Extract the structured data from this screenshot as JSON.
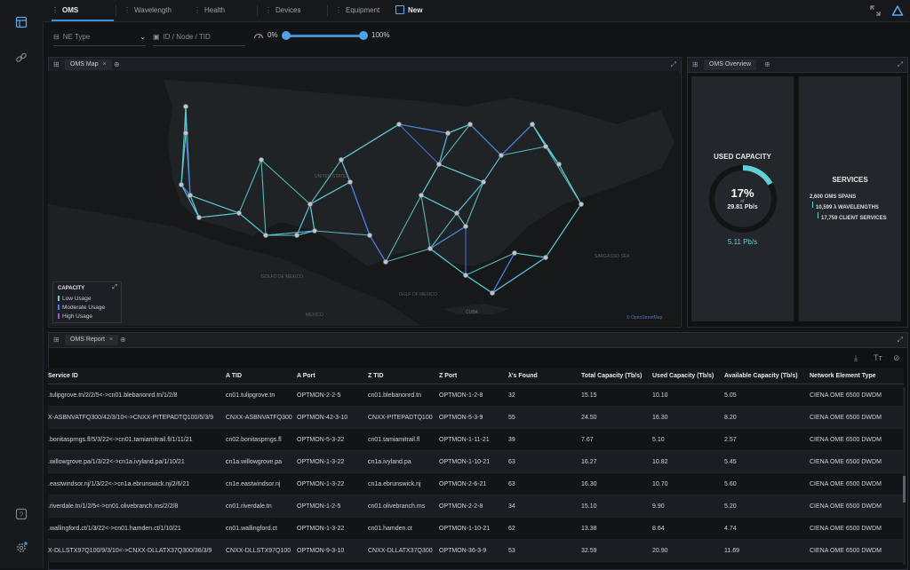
{
  "nav": {
    "tabs": [
      {
        "label": "OMS",
        "active": true
      },
      {
        "label": "Wavelength"
      },
      {
        "label": "Health"
      },
      {
        "label": "Devices"
      },
      {
        "label": "Equipment"
      },
      {
        "label": "New"
      }
    ]
  },
  "filters": {
    "ne_type_placeholder": "NE Type",
    "id_placeholder": "ID / Node / TID",
    "range_min": "0%",
    "range_max": "100%"
  },
  "map_panel": {
    "tab_label": "OMS Map",
    "legend": {
      "title": "CAPACITY",
      "items": [
        {
          "label": "Low Usage",
          "color": "#5fd0d6"
        },
        {
          "label": "Moderate Usage",
          "color": "#4a78ff"
        },
        {
          "label": "High Usage",
          "color": "#9b55e0"
        }
      ]
    },
    "place_labels": [
      "MEXICO",
      "GOLFO DE MEXICO",
      "GULF OF MEXICO",
      "CUBA",
      "SARGASSO SEA",
      "UNITED STATES"
    ],
    "attribution": "© OpenStreetMap"
  },
  "overview_panel": {
    "tab_label": "OMS Overview",
    "used_capacity": {
      "title": "USED CAPACITY",
      "percent": "17%",
      "of_label": "of",
      "total": "29.81 Pb/s",
      "used": "5.11 Pb/s",
      "fraction": 0.17
    },
    "services": {
      "title": "SERVICES",
      "lines": [
        "2,600 OMS SPANS",
        "10,599 λ WAVELENGTHS",
        "17,759 CLIENT SERVICES"
      ]
    }
  },
  "report_panel": {
    "tab_label": "OMS Report",
    "columns": [
      "Service ID",
      "A TID",
      "A Port",
      "Z TID",
      "Z Port",
      "λ's Found",
      "Total Capacity (Tb/s)",
      "Used Capacity (Tb/s)",
      "Available Capacity (Tb/s)",
      "Network Element Type"
    ],
    "rows": [
      [
        ".tulipgrove.tn/2/2/5<->cn01.blebanonrd.tn/1/2/8",
        "cn01.tulipgrove.tn",
        "OPTMON-2-2-5",
        "cn01.blebanonrd.tn",
        "OPTMON-1-2-8",
        "32",
        "15.15",
        "10.10",
        "5.05",
        "CIENA OME 6500 DWDM"
      ],
      [
        "X-ASBNVATFQ300/42/3/10<->CNXX-PITEPADTQ100/5/3/9",
        "CNXX-ASBNVATFQ300",
        "OPTMON-42-3-10",
        "CNXX-PITEPADTQ100",
        "OPTMON-5-3-9",
        "55",
        "24.50",
        "16.30",
        "8.20",
        "CIENA OME 6500 DWDM"
      ],
      [
        ".bonitasprngs.fl/5/3/22<->cn01.tamiamitrail.fl/1/11/21",
        "cn02.bonitasprngs.fl",
        "OPTMON-5-3-22",
        "cn01.tamiamitrail.fl",
        "OPTMON-1-11-21",
        "39",
        "7.67",
        "5.10",
        "2.57",
        "CIENA OME 6500 DWDM"
      ],
      [
        ".willowgrove.pa/1/3/22<->cn1a.ivyland.pa/1/10/21",
        "cn1a.willowgrove.pa",
        "OPTMON-1-3-22",
        "cn1a.ivyland.pa",
        "OPTMON-1-10-21",
        "63",
        "16.27",
        "10.82",
        "5.45",
        "CIENA OME 6500 DWDM"
      ],
      [
        ".eastwindsor.nj/1/3/22<->cn1a.ebrunswick.nj/2/6/21",
        "cn1e.eastwindsor.nj",
        "OPTMON-1-3-22",
        "cn1a.ebrunswick.nj",
        "OPTMON-2-6-21",
        "63",
        "16.30",
        "10.70",
        "5.60",
        "CIENA OME 6500 DWDM"
      ],
      [
        ".riverdale.tn/1/2/5<->cn01.olivebranch.ms/2/2/8",
        "cn01.riverdale.tn",
        "OPTMON-1-2-5",
        "cn01.olivebranch.ms",
        "OPTMON-2-2-8",
        "34",
        "15.10",
        "9.90",
        "5.20",
        "CIENA OME 6500 DWDM"
      ],
      [
        ".wallingford.ct/1/3/22<->cn01.hamden.ct/1/10/21",
        "cn01.wallingford.ct",
        "OPTMON-1-3-22",
        "cn01.hamden.ct",
        "OPTMON-1-10-21",
        "62",
        "13.38",
        "8.64",
        "4.74",
        "CIENA OME 6500 DWDM"
      ],
      [
        "X-DLLSTX97Q100/9/3/10<->CNXX-DLLATX37Q300/36/3/9",
        "CNXX-DLLSTX97Q100",
        "OPTMON-9-3-10",
        "CNXX-DLLATX37Q300",
        "OPTMON-36-3-9",
        "53",
        "32.59",
        "20.90",
        "11.69",
        "CIENA OME 6500 DWDM"
      ]
    ]
  }
}
